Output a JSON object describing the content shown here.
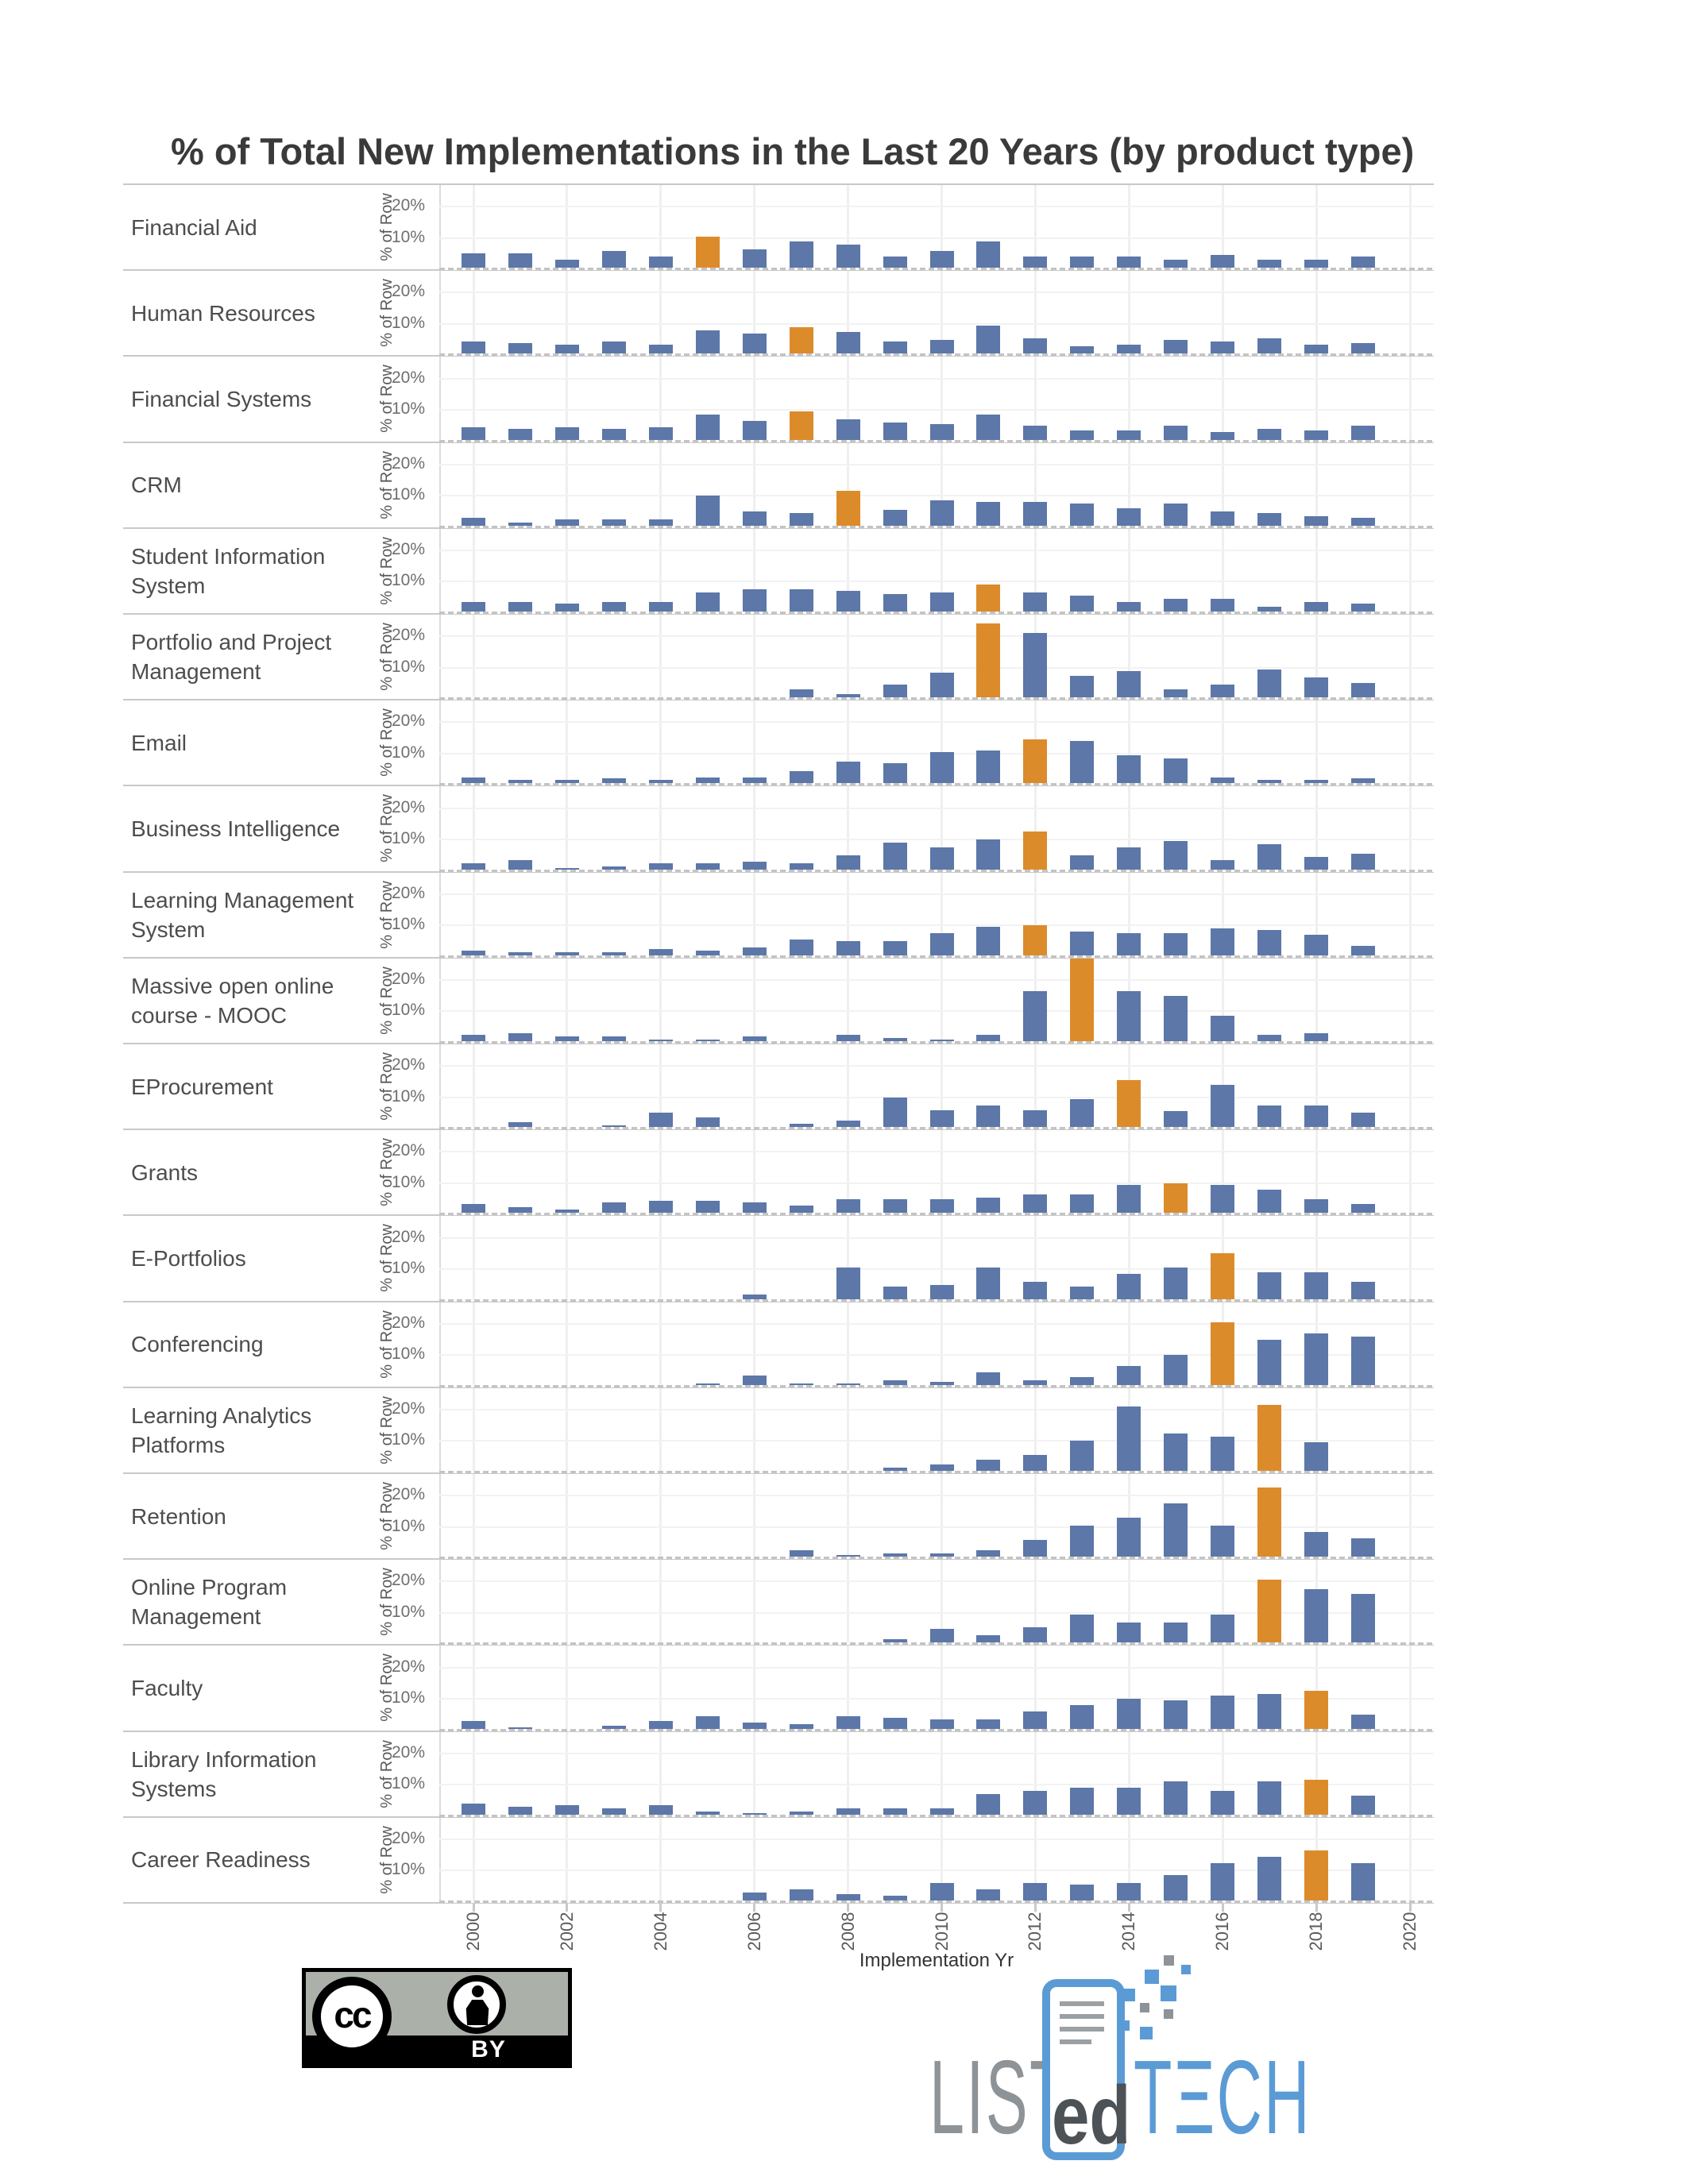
{
  "title": "% of Total New Implementations in the Last 20 Years (by product type)",
  "y_axis": {
    "title": "% of Row",
    "ticks": [
      {
        "label": "20%",
        "value": 20
      },
      {
        "label": "10%",
        "value": 10
      }
    ]
  },
  "x_axis": {
    "title": "Implementation Yr",
    "tick_years": [
      "2000",
      "2002",
      "2004",
      "2006",
      "2008",
      "2010",
      "2012",
      "2014",
      "2016",
      "2018",
      "2020"
    ]
  },
  "colors": {
    "bar_blue": "#5C77A8",
    "bar_orange": "#DC8B2B",
    "gridline": "#EFEFEF",
    "separator": "#C9C9C9",
    "title_text": "#3A3A3A",
    "label_text": "#4D4D4D",
    "tick_text": "#6F6F6F",
    "logo_blue": "#5B9BD5",
    "logo_gray": "#8E9397",
    "badge_gray": "#ABB0A9"
  },
  "chart_data": {
    "type": "bar",
    "x": [
      2000,
      2001,
      2002,
      2003,
      2004,
      2005,
      2006,
      2007,
      2008,
      2009,
      2010,
      2011,
      2012,
      2013,
      2014,
      2015,
      2016,
      2017,
      2018,
      2019
    ],
    "ylim": [
      0,
      27
    ],
    "gridlines": [
      10,
      20
    ],
    "ylabel": "% of Row",
    "xlabel": "Implementation Yr",
    "highlight_meaning": "orange bar marks one year in each row",
    "rows": [
      {
        "label": "Financial Aid",
        "label_lines": [
          "Financial Aid"
        ],
        "highlight_year": 2005,
        "values": [
          5,
          5,
          3,
          6,
          4,
          10.5,
          6.5,
          9,
          8,
          4,
          6,
          9,
          4,
          4,
          4,
          3,
          4.5,
          3,
          3,
          4
        ]
      },
      {
        "label": "Human Resources",
        "label_lines": [
          "Human Resources"
        ],
        "highlight_year": 2007,
        "values": [
          4.5,
          4,
          3.5,
          4.5,
          3.5,
          8,
          7,
          9,
          7.5,
          4.5,
          5,
          9.5,
          5.5,
          3,
          3.5,
          5,
          4.5,
          5.5,
          3.5,
          4
        ]
      },
      {
        "label": "Financial Systems",
        "label_lines": [
          "Financial Systems"
        ],
        "highlight_year": 2007,
        "values": [
          4.5,
          4,
          4.5,
          4,
          4.5,
          8.5,
          6.5,
          9.5,
          7,
          6,
          5.5,
          8.5,
          5,
          3.5,
          3.5,
          5,
          3,
          4,
          3.5,
          5
        ]
      },
      {
        "label": "CRM",
        "label_lines": [
          "CRM"
        ],
        "highlight_year": 2008,
        "values": [
          3,
          1.5,
          2.5,
          2.5,
          2.5,
          10,
          5,
          4.5,
          11.5,
          5.5,
          8.5,
          8,
          8,
          7.5,
          6,
          7.5,
          5,
          4.5,
          3.5,
          3
        ]
      },
      {
        "label": "Student Information System",
        "label_lines": [
          "Student Information",
          "System"
        ],
        "highlight_year": 2011,
        "values": [
          3.5,
          3.5,
          3,
          3.5,
          3.5,
          6.5,
          7.5,
          7.5,
          7,
          6,
          6.5,
          9,
          6.5,
          5.5,
          3.5,
          4.5,
          4.5,
          2,
          3.5,
          3
        ]
      },
      {
        "label": "Portfolio and Project Management",
        "label_lines": [
          "Portfolio and Project",
          "Management"
        ],
        "highlight_year": 2011,
        "values": [
          0,
          0,
          0,
          0,
          0,
          0,
          0,
          3,
          1.5,
          4.5,
          8.5,
          24,
          21,
          7.5,
          9,
          3,
          4.5,
          9.5,
          7,
          5
        ]
      },
      {
        "label": "Email",
        "label_lines": [
          "Email"
        ],
        "highlight_year": 2012,
        "values": [
          2.5,
          1.5,
          1.5,
          2,
          1.5,
          2.5,
          2.5,
          4.5,
          7.5,
          7,
          10.5,
          11,
          14.5,
          14,
          9.5,
          8.5,
          2.5,
          1.5,
          1.5,
          2
        ]
      },
      {
        "label": "Business Intelligence",
        "label_lines": [
          "Business Intelligence"
        ],
        "highlight_year": 2012,
        "values": [
          2.5,
          3.5,
          1,
          1.5,
          2.5,
          2.5,
          3,
          2.5,
          5,
          9,
          7.5,
          10,
          12.5,
          5,
          7.5,
          9.5,
          3.5,
          8.5,
          4.5,
          5.5
        ]
      },
      {
        "label": "Learning Management System",
        "label_lines": [
          "Learning Management",
          "System"
        ],
        "highlight_year": 2012,
        "values": [
          2,
          1.5,
          1.5,
          1.5,
          2.5,
          2,
          3,
          5.5,
          5,
          5,
          7.5,
          9.5,
          10,
          8,
          7.5,
          7.5,
          9,
          8.5,
          7,
          3.5
        ]
      },
      {
        "label": "Massive open online course - MOOC",
        "label_lines": [
          "Massive open online",
          "course - MOOC"
        ],
        "highlight_year": 2013,
        "values": [
          2.5,
          3,
          2,
          2,
          1,
          1,
          2,
          0.5,
          2.5,
          1.5,
          1,
          2.5,
          16.5,
          27,
          16.5,
          15,
          8.5,
          2.5,
          3,
          0
        ]
      },
      {
        "label": "EProcurement",
        "label_lines": [
          "EProcurement"
        ],
        "highlight_year": 2014,
        "values": [
          0,
          2,
          0.5,
          1,
          5,
          3.5,
          0,
          1.5,
          2.5,
          10,
          6,
          7.5,
          6,
          9.5,
          15.5,
          5.5,
          14,
          7.5,
          7.5,
          5
        ]
      },
      {
        "label": "Grants",
        "label_lines": [
          "Grants"
        ],
        "highlight_year": 2015,
        "values": [
          3.5,
          2.5,
          1.5,
          4,
          4.5,
          4.5,
          4,
          3,
          5,
          5,
          5,
          5.5,
          6.5,
          6.5,
          9.5,
          10,
          9.5,
          8,
          5,
          3.5
        ]
      },
      {
        "label": "E-Portfolios",
        "label_lines": [
          "E-Portfolios"
        ],
        "highlight_year": 2016,
        "values": [
          0,
          0,
          0.5,
          0,
          0,
          0.5,
          2,
          0.5,
          10.5,
          4.5,
          5,
          10.5,
          6,
          4.5,
          8.5,
          10.5,
          15,
          9,
          9,
          6
        ]
      },
      {
        "label": "Conferencing",
        "label_lines": [
          "Conferencing"
        ],
        "highlight_year": 2016,
        "values": [
          0.5,
          0,
          0,
          0,
          0,
          1,
          3.5,
          1,
          1,
          2,
          1.5,
          4.5,
          2,
          3,
          6.5,
          10,
          20.5,
          15,
          17,
          16
        ]
      },
      {
        "label": "Learning Analytics Platforms",
        "label_lines": [
          "Learning Analytics",
          "Platforms"
        ],
        "highlight_year": 2017,
        "values": [
          0,
          0,
          0,
          0,
          0.5,
          0,
          0,
          0.5,
          0,
          1.5,
          2.5,
          4,
          5.5,
          10,
          21,
          12.5,
          11.5,
          21.5,
          9.5,
          0
        ]
      },
      {
        "label": "Retention",
        "label_lines": [
          "Retention"
        ],
        "highlight_year": 2017,
        "values": [
          0,
          0,
          0,
          0,
          0,
          0,
          0,
          2.5,
          1,
          1.5,
          1.5,
          2.5,
          6,
          10.5,
          13,
          17.5,
          10.5,
          22.5,
          8.5,
          6.5
        ]
      },
      {
        "label": "Online Program Management",
        "label_lines": [
          "Online Program",
          "Management"
        ],
        "highlight_year": 2017,
        "values": [
          0,
          0,
          0,
          0,
          0,
          0,
          0,
          0.5,
          0.5,
          1.5,
          5,
          3,
          5.5,
          9.5,
          7,
          7,
          9.5,
          20.5,
          17.5,
          16
        ]
      },
      {
        "label": "Faculty",
        "label_lines": [
          "Faculty"
        ],
        "highlight_year": 2018,
        "values": [
          3,
          1,
          0,
          1.5,
          3,
          4.5,
          2.5,
          2,
          4.5,
          4,
          3.5,
          3.5,
          6,
          8,
          10,
          9.5,
          11,
          11.5,
          12.5,
          5
        ]
      },
      {
        "label": "Library Information Systems",
        "label_lines": [
          "Library Information",
          "Systems"
        ],
        "highlight_year": 2018,
        "values": [
          4,
          3,
          3.5,
          2.5,
          3.5,
          1.5,
          1,
          1.5,
          2.5,
          2.5,
          2.5,
          7,
          8,
          9,
          9,
          11,
          8,
          11,
          11.5,
          6.5
        ]
      },
      {
        "label": "Career Readiness",
        "label_lines": [
          "Career Readiness"
        ],
        "highlight_year": 2018,
        "values": [
          0,
          0,
          0,
          0,
          0.5,
          0,
          3,
          4,
          2.5,
          2,
          6,
          4,
          6,
          5.5,
          6,
          8.5,
          12.5,
          14.5,
          16.5,
          12.5
        ]
      }
    ]
  },
  "footer": {
    "cc": {
      "cc_text": "cc",
      "by_text": "BY"
    },
    "logo": {
      "list": "LIST",
      "ed": "ed",
      "tech": "TΞCH"
    }
  }
}
